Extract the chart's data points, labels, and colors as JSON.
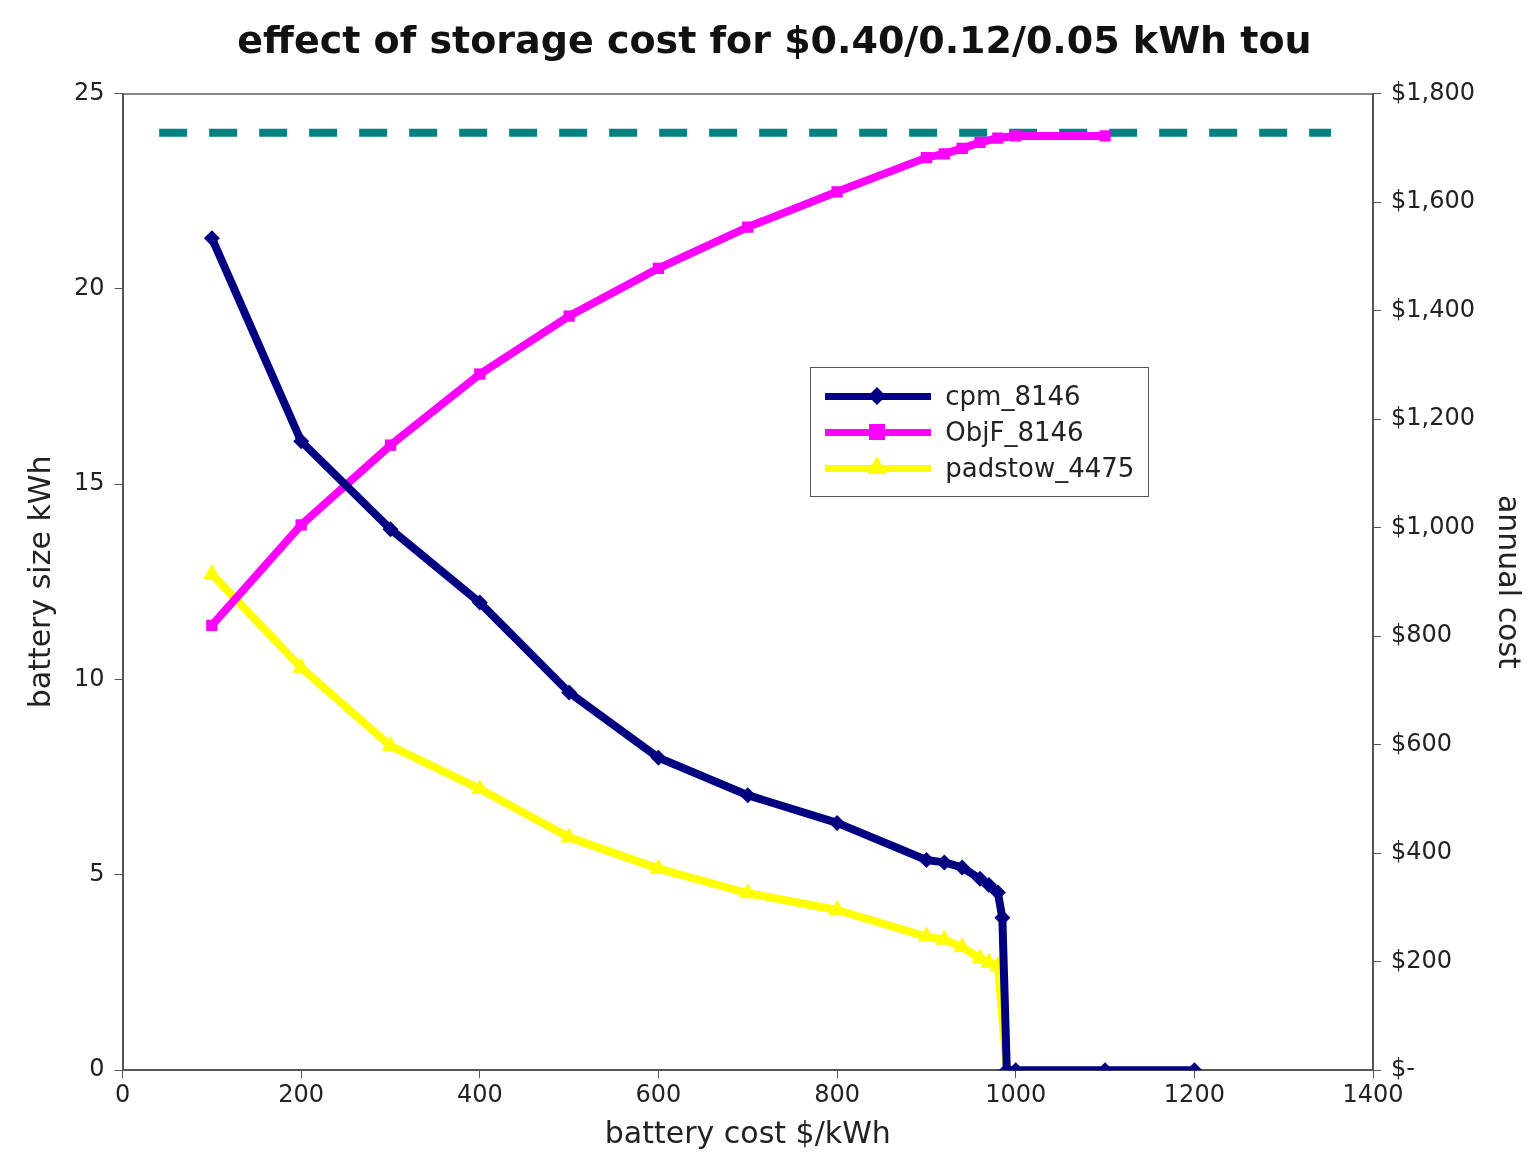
{
  "chart_data": {
    "type": "line",
    "title": "effect of storage cost for $0.40/0.12/0.05 kWh tou",
    "xlabel": "battery cost $/kWh",
    "ylabel": "battery size kWh",
    "y2label": "annual cost",
    "xlim": [
      0,
      1400
    ],
    "xticks": [
      0,
      200,
      400,
      600,
      800,
      1000,
      1200,
      1400
    ],
    "ylim": [
      0,
      25
    ],
    "yticks": [
      0,
      5,
      10,
      15,
      20,
      25
    ],
    "y2lim": [
      0,
      1800
    ],
    "y2ticks": [
      {
        "value": 0,
        "label": "$-"
      },
      {
        "value": 200,
        "label": "$200"
      },
      {
        "value": 400,
        "label": "$400"
      },
      {
        "value": 600,
        "label": "$600"
      },
      {
        "value": 800,
        "label": "$800"
      },
      {
        "value": 1000,
        "label": "$1,000"
      },
      {
        "value": 1200,
        "label": "$1,200"
      },
      {
        "value": 1400,
        "label": "$1,400"
      },
      {
        "value": 1600,
        "label": "$1,600"
      },
      {
        "value": 1800,
        "label": "$1,800"
      }
    ],
    "grid": false,
    "legend": "right",
    "series": [
      {
        "name": "cpm_8146",
        "color": "#000080",
        "marker": "diamond",
        "x": [
          100,
          200,
          300,
          400,
          500,
          600,
          700,
          800,
          900,
          920,
          940,
          960,
          970,
          980,
          985,
          990,
          1000,
          1100,
          1200
        ],
        "values": [
          21.3,
          16.1,
          13.85,
          11.97,
          9.67,
          8.0,
          7.04,
          6.33,
          5.38,
          5.32,
          5.19,
          4.9,
          4.74,
          4.55,
          3.9,
          0,
          0,
          0,
          0
        ]
      },
      {
        "name": "ObjF_8146",
        "color": "#ff00ff",
        "marker": "square",
        "axis": "y2",
        "x": [
          100,
          200,
          300,
          400,
          500,
          600,
          700,
          800,
          900,
          920,
          940,
          960,
          980,
          1000,
          1100
        ],
        "values": [
          820,
          1005,
          1152,
          1283,
          1390,
          1478,
          1554,
          1619,
          1682,
          1689,
          1699,
          1710,
          1718,
          1722,
          1722
        ]
      },
      {
        "name": "padstow_4475",
        "color": "#ffff00",
        "marker": "triangle",
        "x": [
          100,
          200,
          300,
          400,
          500,
          600,
          700,
          800,
          900,
          920,
          940,
          960,
          970,
          980,
          990
        ],
        "values": [
          12.7,
          10.3,
          8.3,
          7.2,
          5.96,
          5.16,
          4.53,
          4.1,
          3.42,
          3.34,
          3.15,
          2.86,
          2.75,
          2.67,
          0
        ]
      },
      {
        "color": "#008080",
        "marker": "none",
        "line_style": "dashed",
        "x": [
          41,
          1353
        ],
        "values": [
          24,
          24
        ]
      }
    ]
  }
}
